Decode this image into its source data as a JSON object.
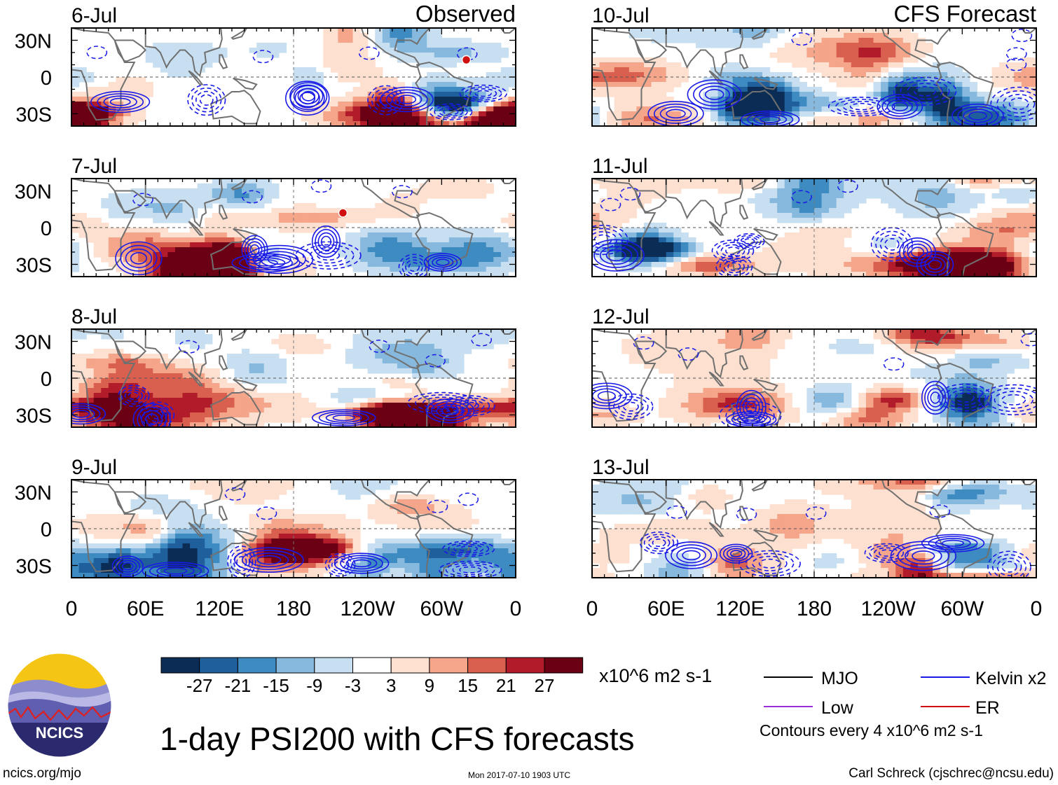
{
  "colors": {
    "colorbar": [
      "#0b2d55",
      "#1f5f9b",
      "#3d8bc1",
      "#86b9dd",
      "#c7dff0",
      "#ffffff",
      "#fde0d0",
      "#f4a58a",
      "#d9604e",
      "#b11b2a",
      "#6b0014"
    ],
    "kelvin": "#1a1ae6",
    "mjo": "#000000",
    "low": "#9b30d9",
    "er": "#d01010",
    "coast": "#707070"
  },
  "chart_data": {
    "type": "heatmap",
    "title": "1-day PSI200 with CFS forecasts",
    "variable": "PSI200",
    "units": "x10^6 m2 s-1",
    "xlabel": "",
    "ylabel": "",
    "x_ticks": [
      "0",
      "60E",
      "120E",
      "180",
      "120W",
      "60W",
      "0"
    ],
    "x_range_deg_east": [
      0,
      360
    ],
    "y_ticks": [
      "30N",
      "0",
      "30S"
    ],
    "y_range_deg": [
      -40,
      40
    ],
    "colorbar_levels": [
      -27,
      -21,
      -15,
      -9,
      -3,
      3,
      9,
      15,
      21,
      27
    ],
    "contour_interval": 4,
    "columns": [
      {
        "label": "Observed",
        "panels": [
          {
            "date": "6-Jul",
            "storm_symbol": true
          },
          {
            "date": "7-Jul",
            "storm_symbol": true
          },
          {
            "date": "8-Jul",
            "storm_symbol": false
          },
          {
            "date": "9-Jul",
            "storm_symbol": false
          }
        ]
      },
      {
        "label": "CFS Forecast",
        "panels": [
          {
            "date": "10-Jul",
            "storm_symbol": false
          },
          {
            "date": "11-Jul",
            "storm_symbol": false
          },
          {
            "date": "12-Jul",
            "storm_symbol": false
          },
          {
            "date": "13-Jul",
            "storm_symbol": false
          }
        ]
      }
    ],
    "legend": [
      {
        "name": "MJO",
        "color_key": "mjo"
      },
      {
        "name": "Kelvin x2",
        "color_key": "kelvin"
      },
      {
        "name": "Low",
        "color_key": "low"
      },
      {
        "name": "ER",
        "color_key": "er"
      }
    ],
    "contour_note": "Contours every 4 x10^6 m2 s-1"
  },
  "logo": {
    "text": "NCICS"
  },
  "footer": {
    "url": "ncics.org/mjo",
    "timestamp": "Mon 2017-07-10 1903 UTC",
    "author": "Carl Schreck (cjschrec@ncsu.edu)"
  }
}
